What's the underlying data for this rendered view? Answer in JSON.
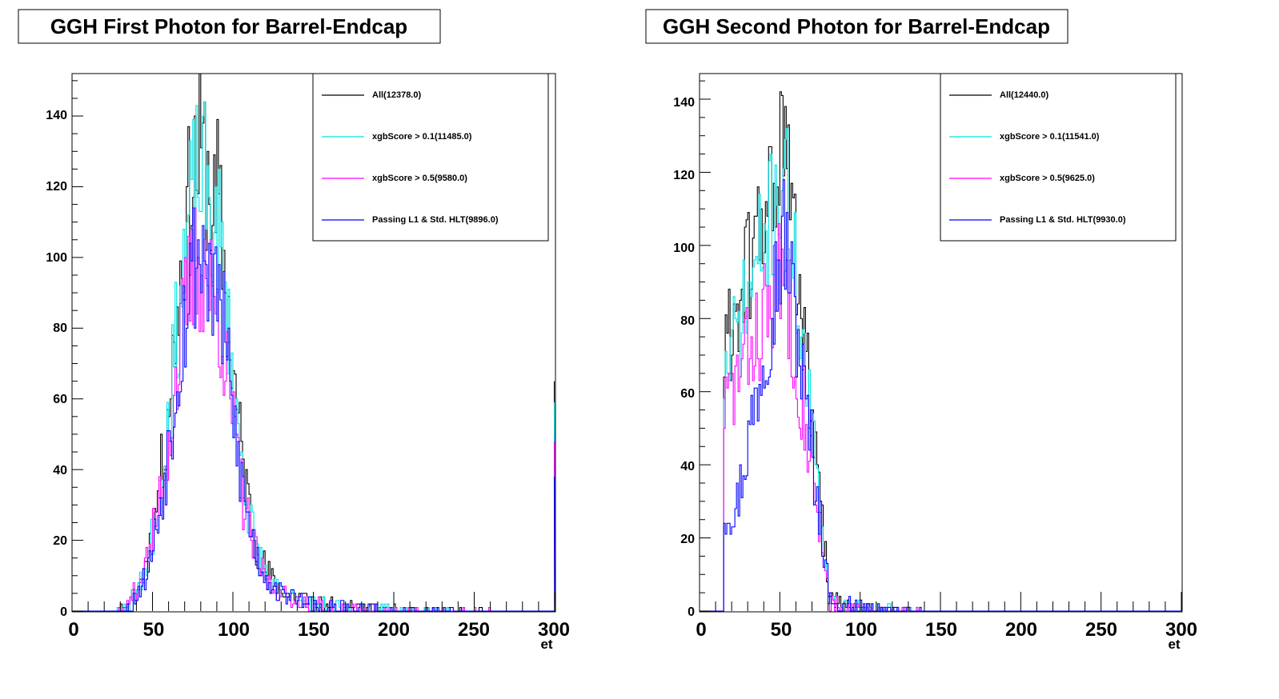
{
  "chart_data": [
    {
      "type": "histogram",
      "title": "GGH First Photon for Barrel-Endcap",
      "xlabel": "et",
      "xlim": [
        0,
        300
      ],
      "ylim": [
        0,
        152
      ],
      "x_ticks": [
        "0",
        "50",
        "100",
        "150",
        "200",
        "250",
        "300"
      ],
      "y_ticks": [
        "0",
        "20",
        "40",
        "60",
        "80",
        "100",
        "120",
        "140"
      ],
      "legend_position": "top-right",
      "bin_width": 1,
      "series": [
        {
          "name": "All(12378.0)",
          "color": "#000000",
          "shape": "gauss",
          "peak_x": 80,
          "peak_y": 128,
          "sigma_left": 16,
          "sigma_right": 16,
          "tail_amp": 14,
          "tail_decay": 40,
          "start": 15,
          "overflow_y": 65,
          "noise": 0.11,
          "seed": 11
        },
        {
          "name": "xgbScore > 0.1(11485.0)",
          "color": "#00e5e5",
          "shape": "gauss",
          "peak_x": 80,
          "peak_y": 122,
          "sigma_left": 16,
          "sigma_right": 16,
          "tail_amp": 12,
          "tail_decay": 40,
          "start": 17,
          "overflow_y": 59,
          "noise": 0.11,
          "seed": 23
        },
        {
          "name": "xgbScore > 0.5(9580.0)",
          "color": "#ff00ff",
          "shape": "gauss",
          "peak_x": 80,
          "peak_y": 98,
          "sigma_left": 17,
          "sigma_right": 16,
          "tail_amp": 11,
          "tail_decay": 40,
          "start": 17,
          "overflow_y": 48,
          "noise": 0.12,
          "seed": 37
        },
        {
          "name": "Passing L1 & Std. HLT(9896.0)",
          "color": "#0000ff",
          "shape": "gauss",
          "peak_x": 80,
          "peak_y": 102,
          "sigma_left": 16,
          "sigma_right": 16,
          "tail_amp": 12,
          "tail_decay": 40,
          "start": 30,
          "overflow_y": 38,
          "noise": 0.12,
          "seed": 53
        }
      ]
    },
    {
      "type": "histogram",
      "title": "GGH Second Photon for Barrel-Endcap",
      "xlabel": "et",
      "xlim": [
        0,
        300
      ],
      "ylim": [
        0,
        147
      ],
      "x_ticks": [
        "0",
        "50",
        "100",
        "150",
        "200",
        "250",
        "300"
      ],
      "y_ticks": [
        "0",
        "20",
        "40",
        "60",
        "80",
        "100",
        "120",
        "140"
      ],
      "legend_position": "top-right",
      "bin_width": 1,
      "series": [
        {
          "name": "All(12440.0)",
          "color": "#000000",
          "shape": "ramp",
          "edge": 15,
          "low_x": 15,
          "low_y": 70,
          "peak_x": 53,
          "peak_y": 128,
          "drop_end": 80,
          "tail_amp": 4,
          "tail_decay": 22,
          "noise": 0.08,
          "seed": 61
        },
        {
          "name": "xgbScore > 0.1(11541.0)",
          "color": "#00e5e5",
          "shape": "ramp",
          "edge": 15,
          "low_x": 15,
          "low_y": 63,
          "peak_x": 53,
          "peak_y": 120,
          "drop_end": 80,
          "tail_amp": 4,
          "tail_decay": 22,
          "noise": 0.08,
          "seed": 71
        },
        {
          "name": "xgbScore > 0.5(9625.0)",
          "color": "#ff00ff",
          "shape": "ramp",
          "edge": 15,
          "low_x": 15,
          "low_y": 55,
          "peak_x": 53,
          "peak_y": 93,
          "drop_end": 80,
          "tail_amp": 3,
          "tail_decay": 22,
          "noise": 0.09,
          "seed": 83
        },
        {
          "name": "Passing L1 & Std. HLT(9930.0)",
          "color": "#0000ff",
          "shape": "ramp",
          "edge": 15,
          "low_x": 15,
          "low_y": 28,
          "low_len": 8,
          "peak_x": 53,
          "peak_y": 104,
          "drop_end": 80,
          "tail_amp": 4,
          "tail_decay": 22,
          "noise": 0.09,
          "seed": 97
        }
      ]
    }
  ]
}
